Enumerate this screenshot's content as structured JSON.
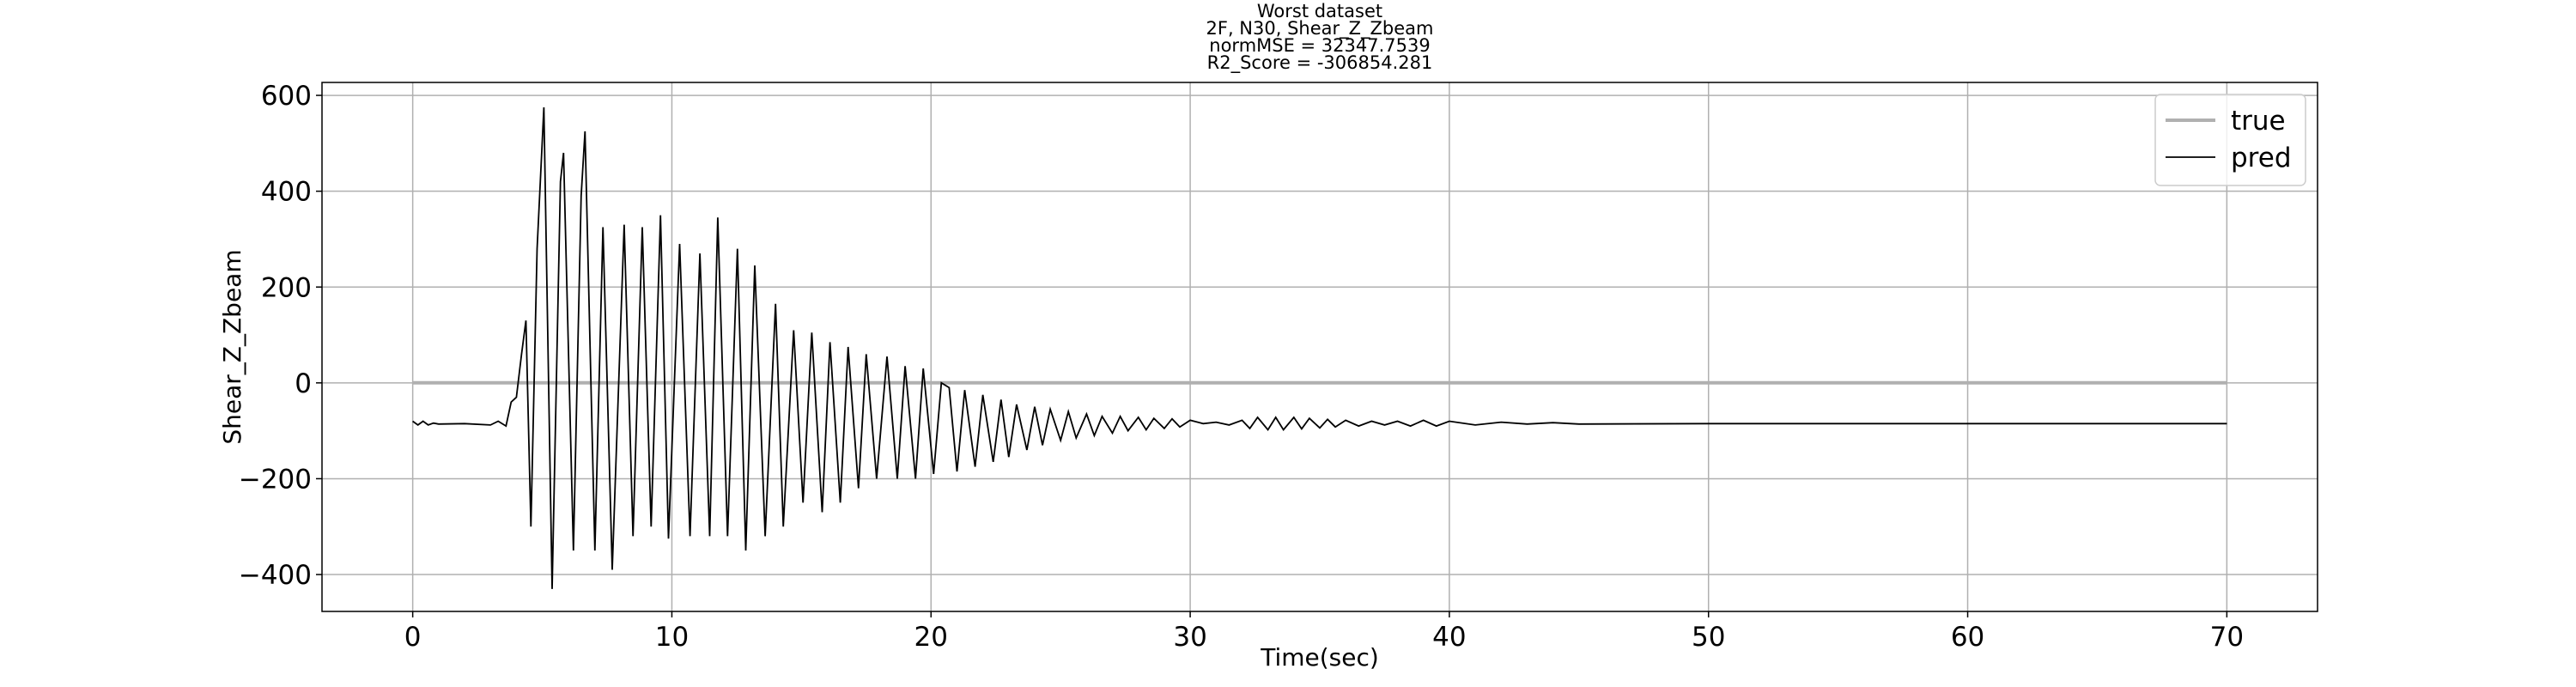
{
  "chart_data": {
    "type": "line",
    "title": [
      "Worst dataset",
      "2F, N30, Shear_Z_Zbeam",
      "normMSE = 32347.7539",
      "R2_Score = -306854.281"
    ],
    "xlabel": "Time(sec)",
    "ylabel": "Shear_Z_Zbeam",
    "xlim": [
      -3.5,
      73.5
    ],
    "ylim": [
      -477,
      627
    ],
    "xticks": [
      0,
      10,
      20,
      30,
      40,
      50,
      60,
      70
    ],
    "yticks": [
      {
        "value": -400,
        "label": "−400"
      },
      {
        "value": -200,
        "label": "−200"
      },
      0,
      200,
      400,
      600
    ],
    "grid": true,
    "legend": "upper right",
    "series": [
      {
        "name": "true",
        "color": "#b0b0b0",
        "x": [
          0,
          70
        ],
        "values": [
          0,
          0
        ]
      },
      {
        "name": "pred",
        "color": "#000000",
        "x": [
          0,
          0.2,
          0.4,
          0.6,
          0.8,
          1,
          2,
          3,
          3.3,
          3.6,
          3.8,
          4.0,
          4.2,
          4.37,
          4.56,
          4.8,
          5.06,
          5.38,
          5.7,
          5.82,
          6.2,
          6.5,
          6.65,
          7.03,
          7.34,
          7.7,
          8.16,
          8.5,
          8.86,
          9.2,
          9.56,
          9.87,
          10.3,
          10.7,
          11.08,
          11.46,
          11.77,
          12.15,
          12.53,
          12.85,
          13.2,
          13.6,
          14.0,
          14.3,
          14.7,
          15.06,
          15.4,
          15.8,
          16.1,
          16.5,
          16.8,
          17.2,
          17.5,
          17.9,
          18.3,
          18.7,
          19.0,
          19.4,
          19.7,
          20.1,
          20.4,
          20.7,
          21.0,
          21.3,
          21.7,
          22.0,
          22.4,
          22.7,
          23.0,
          23.3,
          23.7,
          24.0,
          24.3,
          24.6,
          25.0,
          25.3,
          25.6,
          26.0,
          26.3,
          26.6,
          27.0,
          27.3,
          27.6,
          28.0,
          28.3,
          28.6,
          29.0,
          29.3,
          29.6,
          30.0,
          30.5,
          31,
          31.5,
          32,
          32.3,
          32.6,
          33,
          33.3,
          33.6,
          34,
          34.3,
          34.6,
          35,
          35.3,
          35.6,
          36,
          36.5,
          37,
          37.5,
          38,
          38.5,
          39,
          39.5,
          40,
          41,
          42,
          43,
          44,
          45,
          50,
          60,
          70
        ],
        "values": [
          -80,
          -88,
          -80,
          -88,
          -84,
          -86,
          -85,
          -88,
          -80,
          -90,
          -40,
          -30,
          60,
          130,
          -300,
          280,
          575,
          -430,
          420,
          480,
          -350,
          390,
          525,
          -350,
          325,
          -390,
          330,
          -320,
          325,
          -300,
          350,
          -325,
          290,
          -320,
          270,
          -320,
          345,
          -320,
          280,
          -350,
          245,
          -320,
          165,
          -300,
          110,
          -250,
          105,
          -270,
          85,
          -250,
          75,
          -220,
          60,
          -200,
          55,
          -200,
          35,
          -200,
          30,
          -190,
          0,
          -10,
          -185,
          -15,
          -175,
          -25,
          -165,
          -35,
          -155,
          -45,
          -140,
          -50,
          -130,
          -55,
          -120,
          -60,
          -115,
          -65,
          -110,
          -70,
          -105,
          -70,
          -100,
          -72,
          -98,
          -74,
          -95,
          -75,
          -92,
          -78,
          -85,
          -82,
          -88,
          -78,
          -95,
          -72,
          -98,
          -72,
          -98,
          -72,
          -96,
          -74,
          -94,
          -76,
          -92,
          -78,
          -90,
          -80,
          -88,
          -80,
          -90,
          -78,
          -90,
          -80,
          -88,
          -82,
          -86,
          -83,
          -86,
          -85,
          -85,
          -85
        ]
      }
    ]
  }
}
